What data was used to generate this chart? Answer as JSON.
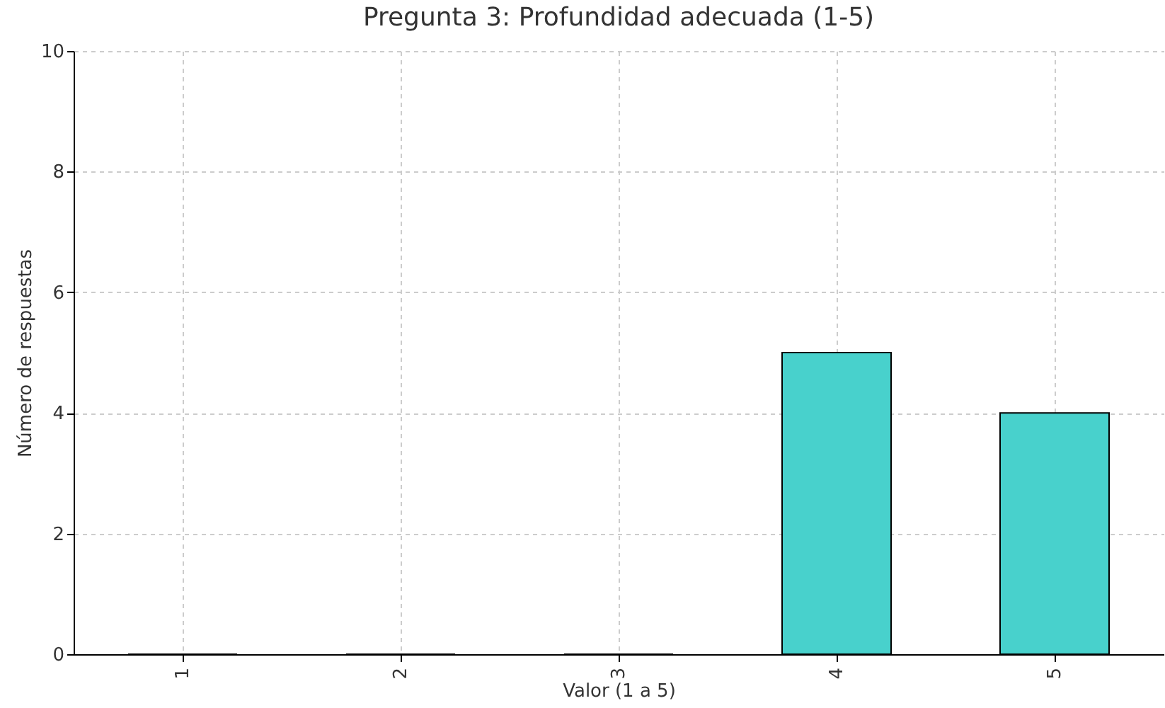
{
  "chart_data": {
    "type": "bar",
    "title": "Pregunta 3: Profundidad adecuada (1-5)",
    "xlabel": "Valor (1 a 5)",
    "ylabel": "Número de respuestas",
    "categories": [
      "1",
      "2",
      "3",
      "4",
      "5"
    ],
    "values": [
      0,
      0,
      0,
      5,
      4
    ],
    "color": "#48d1cc",
    "ylim": [
      0,
      10
    ],
    "yticks": [
      0,
      2,
      4,
      6,
      8,
      10
    ],
    "grid": true
  }
}
